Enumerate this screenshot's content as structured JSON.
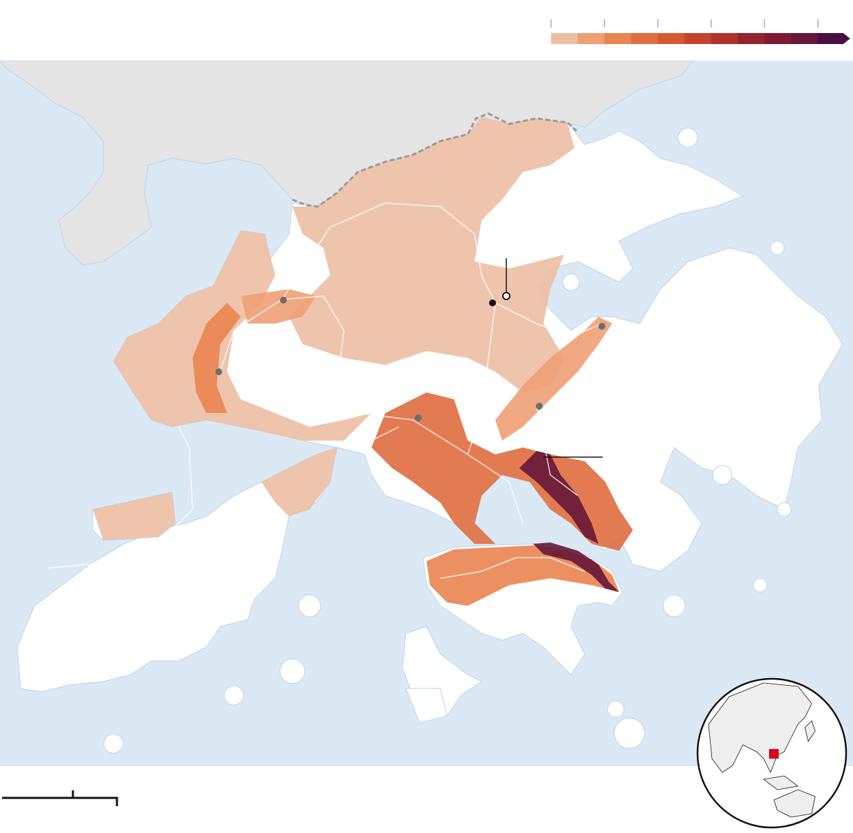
{
  "legend": {
    "colors": [
      "#ecbfa3",
      "#f0a077",
      "#ea8450",
      "#e06d3f",
      "#d55a31",
      "#c4452e",
      "#ad332b",
      "#962330",
      "#7e1a33",
      "#661639",
      "#4a1045"
    ],
    "open_ended": true
  },
  "map": {
    "sea_color": "#dbe9f5",
    "neighbor_land_color": "#e5e5e5",
    "land_color": "#ffffff",
    "border_style": "dashed",
    "border_color": "#999999",
    "road_color": "#ffffff",
    "marker_color": "#6d6d6d"
  },
  "inset": {
    "type": "globe",
    "highlight_color": "#e0001b"
  }
}
